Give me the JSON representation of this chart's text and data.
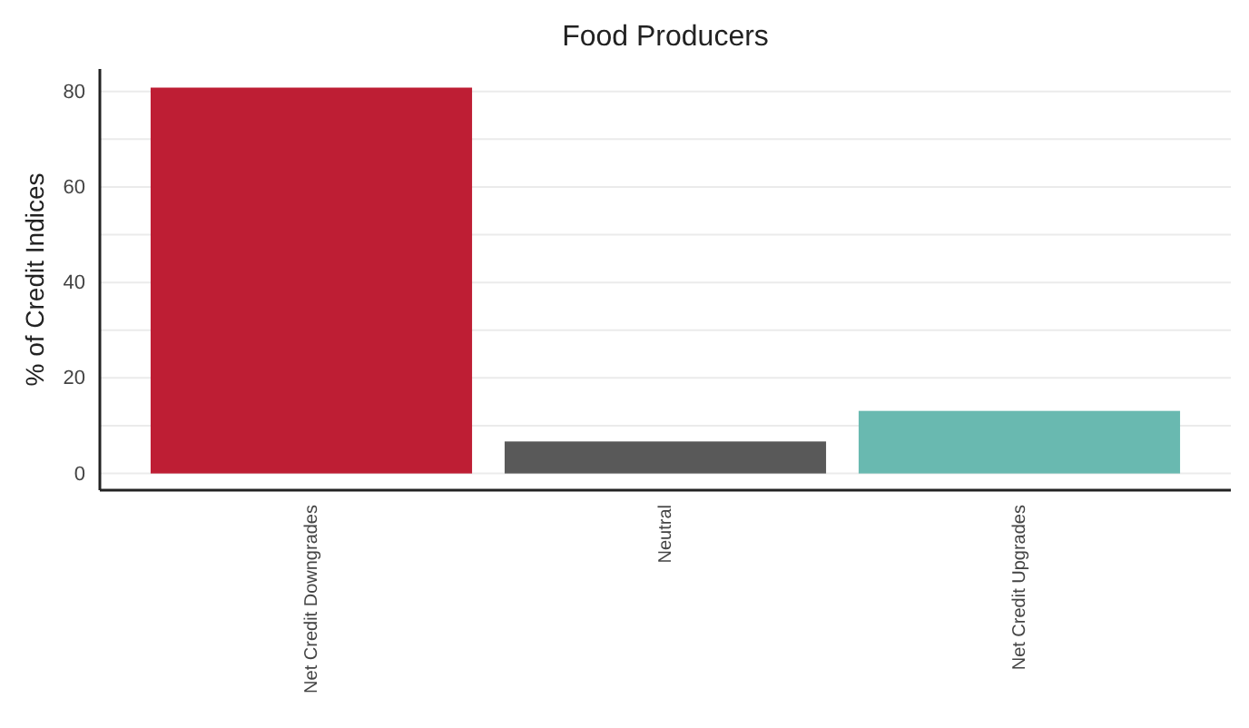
{
  "chart_data": {
    "type": "bar",
    "title": "Food Producers",
    "ylabel": "% of Credit Indices",
    "categories": [
      "Net Credit Downgrades",
      "Neutral",
      "Net Credit Upgrades"
    ],
    "values": [
      80.8,
      6.7,
      13.1
    ],
    "colors": [
      "#be1e34",
      "#595959",
      "#69b9b0"
    ],
    "ylim": [
      -3.5,
      84.7
    ],
    "yticks": [
      0,
      20,
      40,
      60,
      80
    ],
    "grid": "y"
  }
}
